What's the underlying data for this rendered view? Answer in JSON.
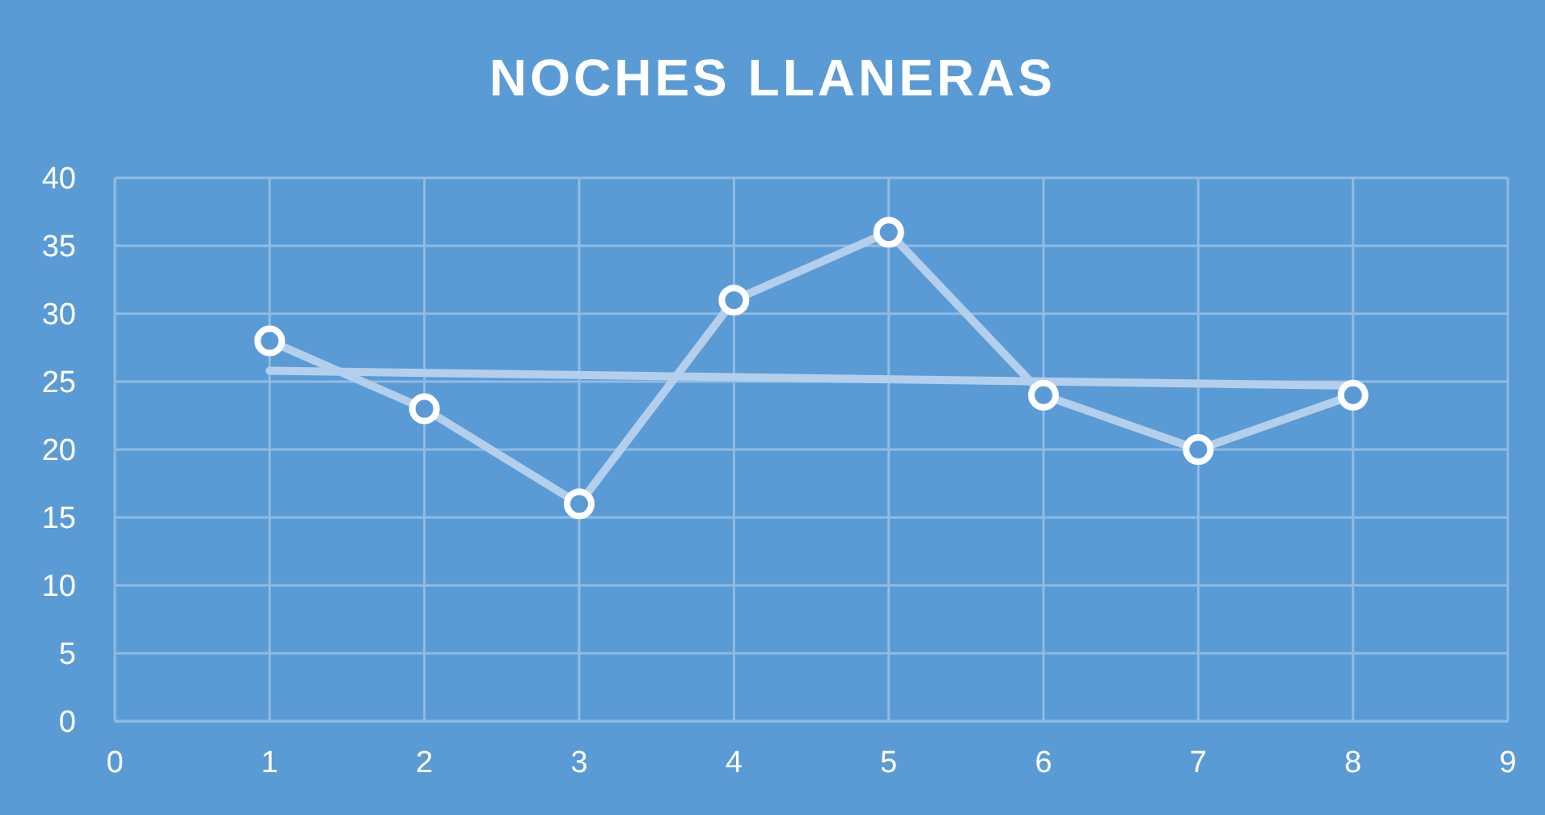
{
  "chart_data": {
    "type": "line",
    "title": "NOCHES LLANERAS",
    "x": [
      1,
      2,
      3,
      4,
      5,
      6,
      7,
      8
    ],
    "series": [
      {
        "color": "#b3cfec",
        "values": [
          28,
          23,
          16,
          31,
          36,
          24,
          20,
          24
        ]
      },
      {
        "type": "line",
        "color": "#b3cfec",
        "x": [
          1,
          8
        ],
        "values": [
          25.8,
          24.7
        ],
        "marker": "none"
      }
    ],
    "xlim": [
      0,
      9
    ],
    "xticks": [
      0,
      1,
      2,
      3,
      4,
      5,
      6,
      7,
      8,
      9
    ],
    "ylim": [
      0,
      40
    ],
    "yticks": [
      0,
      5,
      10,
      15,
      20,
      25,
      30,
      35,
      40
    ],
    "grid": true,
    "marker": "circle"
  }
}
